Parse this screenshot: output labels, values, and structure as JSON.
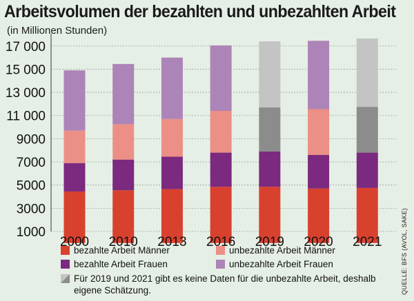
{
  "chart_data": {
    "type": "bar",
    "stacked": true,
    "title": "Arbeitsvolumen der bezahlten und unbezahlten Arbeit",
    "subtitle": "(in Millionen Stunden)",
    "categories": [
      "2000",
      "2010",
      "2013",
      "2016",
      "2019",
      "2020",
      "2021"
    ],
    "ylim": [
      1000,
      17700
    ],
    "yticks": [
      1000,
      3000,
      5000,
      7000,
      9000,
      11000,
      13000,
      15000,
      17000
    ],
    "ytick_labels": [
      "1000",
      "3000",
      "5000",
      "7000",
      "9000",
      "11 000",
      "13 000",
      "15 000",
      "17 000"
    ],
    "grid": true,
    "series": [
      {
        "name": "bezahlte Arbeit Männer",
        "color": "#d9412f",
        "values": [
          4450,
          4550,
          4650,
          4850,
          4850,
          4700,
          4750
        ]
      },
      {
        "name": "bezahlte Arbeit Frauen",
        "color": "#7b2a7f",
        "values": [
          2450,
          2650,
          2800,
          2950,
          3050,
          2900,
          3050
        ]
      },
      {
        "name": "unbezahlte Arbeit Männer",
        "color": "#ec8f86",
        "values": [
          2800,
          3050,
          3250,
          3600,
          3800,
          3950,
          3950
        ]
      },
      {
        "name": "unbezahlte Arbeit Frauen",
        "color": "#ad84b7",
        "values": [
          5200,
          5200,
          5300,
          5650,
          5700,
          5900,
          5900
        ]
      }
    ],
    "estimated_categories": [
      "2019",
      "2021"
    ],
    "estimate_colors": {
      "unbezahlte Arbeit Männer": "#8c8c8c",
      "unbezahlte Arbeit Frauen": "#c4c4c4"
    },
    "legend": [
      {
        "label": "bezahlte Arbeit Männer",
        "color": "#d9412f"
      },
      {
        "label": "unbezahlte Arbeit Männer",
        "color": "#ec8f86"
      },
      {
        "label": "bezahlte Arbeit Frauen",
        "color": "#7b2a7f"
      },
      {
        "label": "unbezahlte Arbeit Frauen",
        "color": "#ad84b7"
      }
    ],
    "note": "Für 2019 und 2021 gibt es keine Daten für die unbezahlte Arbeit, deshalb eigene Schätzung.",
    "source": "QUELLE: BFS (AVOL, SAKE)"
  }
}
